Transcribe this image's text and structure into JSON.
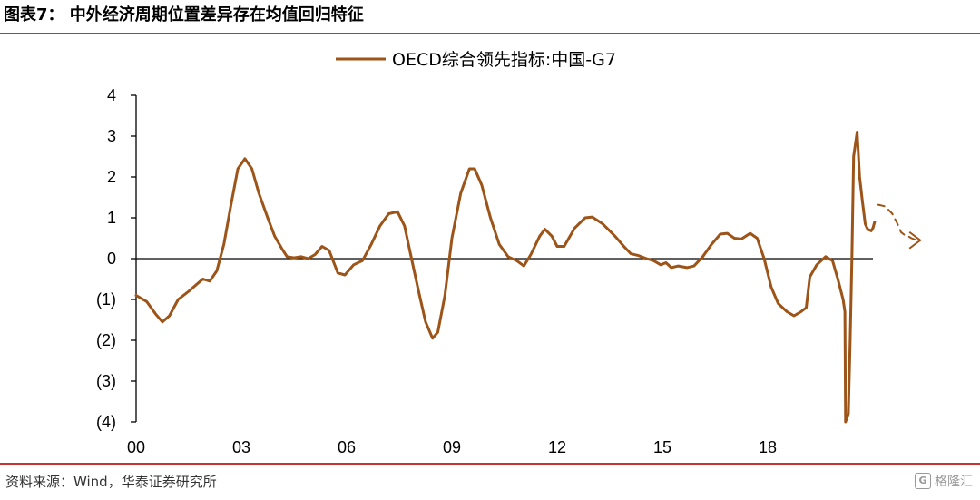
{
  "header": {
    "title": "图表7： 中外经济周期位置差异存在均值回归特征"
  },
  "footer": {
    "source": "资料来源：Wind，华泰证券研究所",
    "watermark": "格隆汇",
    "watermark_badge": "G"
  },
  "colors": {
    "series": "#9c5418",
    "rule": "#c9332f",
    "axis": "#000000"
  },
  "chart_data": {
    "type": "line",
    "title": "",
    "xlabel": "",
    "ylabel": "",
    "ylim": [
      -4,
      4
    ],
    "yticks": [
      4,
      3,
      2,
      1,
      0,
      -1,
      -2,
      -3,
      -4
    ],
    "ytick_labels": [
      "4",
      "3",
      "2",
      "1",
      "0",
      "(1)",
      "(2)",
      "(3)",
      "(4)"
    ],
    "xlim": [
      2000,
      2021
    ],
    "xticks": [
      2000,
      2003,
      2006,
      2009,
      2012,
      2015,
      2018
    ],
    "xtick_labels": [
      "00",
      "03",
      "06",
      "09",
      "12",
      "15",
      "18"
    ],
    "legend": {
      "position": "top-center",
      "entries": [
        "OECD综合领先指标:中国-G7"
      ]
    },
    "grid": false,
    "series": [
      {
        "name": "OECD综合领先指标:中国-G7",
        "style": "solid",
        "points": [
          [
            2000.0,
            -0.9
          ],
          [
            2000.3,
            -1.05
          ],
          [
            2000.55,
            -1.35
          ],
          [
            2000.75,
            -1.55
          ],
          [
            2000.95,
            -1.4
          ],
          [
            2001.2,
            -1.0
          ],
          [
            2001.5,
            -0.8
          ],
          [
            2001.7,
            -0.65
          ],
          [
            2001.9,
            -0.5
          ],
          [
            2002.1,
            -0.55
          ],
          [
            2002.3,
            -0.3
          ],
          [
            2002.5,
            0.35
          ],
          [
            2002.7,
            1.3
          ],
          [
            2002.9,
            2.2
          ],
          [
            2003.1,
            2.45
          ],
          [
            2003.3,
            2.2
          ],
          [
            2003.5,
            1.6
          ],
          [
            2003.75,
            1.0
          ],
          [
            2003.95,
            0.55
          ],
          [
            2004.15,
            0.25
          ],
          [
            2004.3,
            0.05
          ],
          [
            2004.5,
            0.02
          ],
          [
            2004.7,
            0.05
          ],
          [
            2004.9,
            0.0
          ],
          [
            2005.1,
            0.1
          ],
          [
            2005.3,
            0.3
          ],
          [
            2005.5,
            0.2
          ],
          [
            2005.75,
            -0.35
          ],
          [
            2005.95,
            -0.4
          ],
          [
            2006.2,
            -0.15
          ],
          [
            2006.45,
            -0.05
          ],
          [
            2006.7,
            0.35
          ],
          [
            2006.95,
            0.8
          ],
          [
            2007.2,
            1.1
          ],
          [
            2007.45,
            1.15
          ],
          [
            2007.65,
            0.8
          ],
          [
            2007.85,
            0.0
          ],
          [
            2008.05,
            -0.8
          ],
          [
            2008.25,
            -1.55
          ],
          [
            2008.45,
            -1.95
          ],
          [
            2008.6,
            -1.8
          ],
          [
            2008.8,
            -0.9
          ],
          [
            2009.0,
            0.5
          ],
          [
            2009.25,
            1.6
          ],
          [
            2009.5,
            2.2
          ],
          [
            2009.65,
            2.2
          ],
          [
            2009.85,
            1.8
          ],
          [
            2010.1,
            1.0
          ],
          [
            2010.35,
            0.35
          ],
          [
            2010.6,
            0.05
          ],
          [
            2010.85,
            -0.05
          ],
          [
            2011.05,
            -0.18
          ],
          [
            2011.25,
            0.1
          ],
          [
            2011.5,
            0.55
          ],
          [
            2011.65,
            0.72
          ],
          [
            2011.85,
            0.55
          ],
          [
            2012.0,
            0.3
          ],
          [
            2012.2,
            0.3
          ],
          [
            2012.5,
            0.75
          ],
          [
            2012.8,
            1.0
          ],
          [
            2013.0,
            1.02
          ],
          [
            2013.3,
            0.85
          ],
          [
            2013.65,
            0.55
          ],
          [
            2013.9,
            0.3
          ],
          [
            2014.1,
            0.12
          ],
          [
            2014.3,
            0.08
          ],
          [
            2014.55,
            0.0
          ],
          [
            2014.75,
            -0.05
          ],
          [
            2014.95,
            -0.15
          ],
          [
            2015.1,
            -0.1
          ],
          [
            2015.25,
            -0.22
          ],
          [
            2015.45,
            -0.18
          ],
          [
            2015.7,
            -0.22
          ],
          [
            2015.9,
            -0.18
          ],
          [
            2016.15,
            0.05
          ],
          [
            2016.4,
            0.35
          ],
          [
            2016.65,
            0.6
          ],
          [
            2016.85,
            0.62
          ],
          [
            2017.05,
            0.5
          ],
          [
            2017.25,
            0.48
          ],
          [
            2017.5,
            0.62
          ],
          [
            2017.7,
            0.5
          ],
          [
            2017.9,
            0.0
          ],
          [
            2018.1,
            -0.7
          ],
          [
            2018.3,
            -1.1
          ],
          [
            2018.55,
            -1.3
          ],
          [
            2018.75,
            -1.4
          ],
          [
            2018.95,
            -1.3
          ],
          [
            2019.1,
            -1.2
          ],
          [
            2019.2,
            -0.45
          ],
          [
            2019.4,
            -0.15
          ],
          [
            2019.65,
            0.05
          ],
          [
            2019.85,
            -0.05
          ],
          [
            2020.0,
            -0.5
          ],
          [
            2020.15,
            -1.0
          ],
          [
            2020.2,
            -1.3
          ],
          [
            2020.22,
            -4.0
          ],
          [
            2020.3,
            -3.8
          ],
          [
            2020.35,
            -2.0
          ],
          [
            2020.4,
            0.0
          ],
          [
            2020.45,
            2.5
          ],
          [
            2020.55,
            3.1
          ],
          [
            2020.62,
            2.0
          ],
          [
            2020.7,
            1.4
          ],
          [
            2020.78,
            0.85
          ],
          [
            2020.85,
            0.72
          ],
          [
            2020.95,
            0.68
          ],
          [
            2021.0,
            0.75
          ],
          [
            2021.05,
            0.9
          ]
        ]
      },
      {
        "name": "",
        "style": "dashed",
        "points": [
          [
            2021.15,
            1.32
          ],
          [
            2021.35,
            1.28
          ],
          [
            2021.55,
            1.1
          ],
          [
            2021.7,
            0.85
          ],
          [
            2021.8,
            0.65
          ],
          [
            2021.9,
            0.58
          ],
          [
            2022.0,
            0.55
          ],
          [
            2022.1,
            0.5
          ],
          [
            2022.25,
            0.45
          ]
        ]
      }
    ],
    "annotations": [
      {
        "type": "arrowhead",
        "at": [
          2022.35,
          0.45
        ],
        "direction": "right"
      }
    ]
  }
}
